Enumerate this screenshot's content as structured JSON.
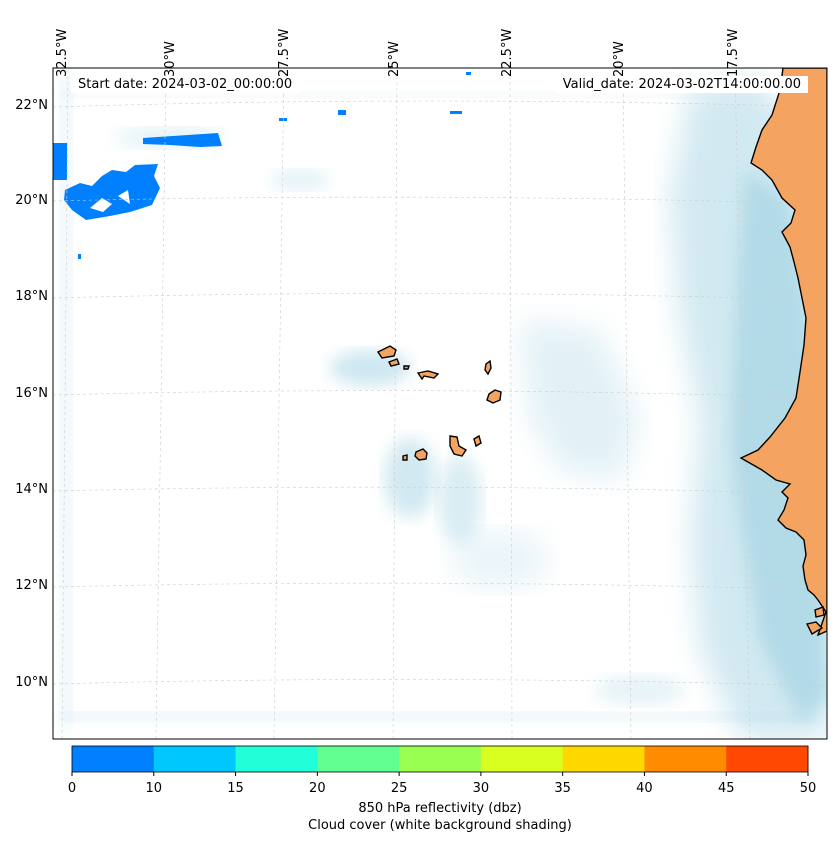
{
  "map": {
    "start_date": "Start date: 2024-03-02_00:00:00",
    "valid_date": "Valid_date: 2024-03-02T14:00:00.00",
    "lon_labels": [
      "32.5°W",
      "30°W",
      "27.5°W",
      "25°W",
      "22.5°W",
      "20°W",
      "17.5°W"
    ],
    "lat_labels": [
      "22°N",
      "20°N",
      "18°N",
      "16°N",
      "14°N",
      "12°N",
      "10°N"
    ],
    "colors": {
      "land": "#f4a460",
      "cloud": "#add8e6",
      "coast": "#000000",
      "grid": "#cccccc"
    }
  },
  "colorbar": {
    "ticks": [
      "0",
      "10",
      "15",
      "20",
      "25",
      "30",
      "35",
      "40",
      "45",
      "50"
    ],
    "colors": [
      "#0080ff",
      "#00c8ff",
      "#20ffd8",
      "#60ff90",
      "#98ff50",
      "#d8ff20",
      "#ffd800",
      "#ff8c00",
      "#ff4800"
    ],
    "label_line1": "850 hPa reflectivity (dbz)",
    "label_line2": "Cloud cover (white background shading)"
  }
}
